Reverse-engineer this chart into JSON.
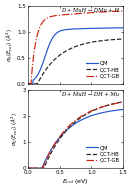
{
  "title1": "D + MuH → DMu + H",
  "title2": "D + MuH → DH + Mu",
  "xlabel": "E$_{col}$ (eV)",
  "ylabel": "$\\sigma_0(E_{col})$ ($\\AA^2$)",
  "xlim": [
    0.0,
    1.5
  ],
  "ylim1": [
    0.0,
    1.5
  ],
  "ylim2": [
    0.0,
    3.0
  ],
  "yticks1": [
    0.0,
    0.5,
    1.0,
    1.5
  ],
  "yticks2": [
    0.0,
    1.0,
    2.0,
    3.0
  ],
  "xticks": [
    0.0,
    0.5,
    1.0,
    1.5
  ],
  "legend_labels": [
    "QM",
    "QCT-HB",
    "QCT-GB"
  ],
  "colors": [
    "#2255cc",
    "#222222",
    "#cc2211"
  ],
  "bg": "#ffffff"
}
